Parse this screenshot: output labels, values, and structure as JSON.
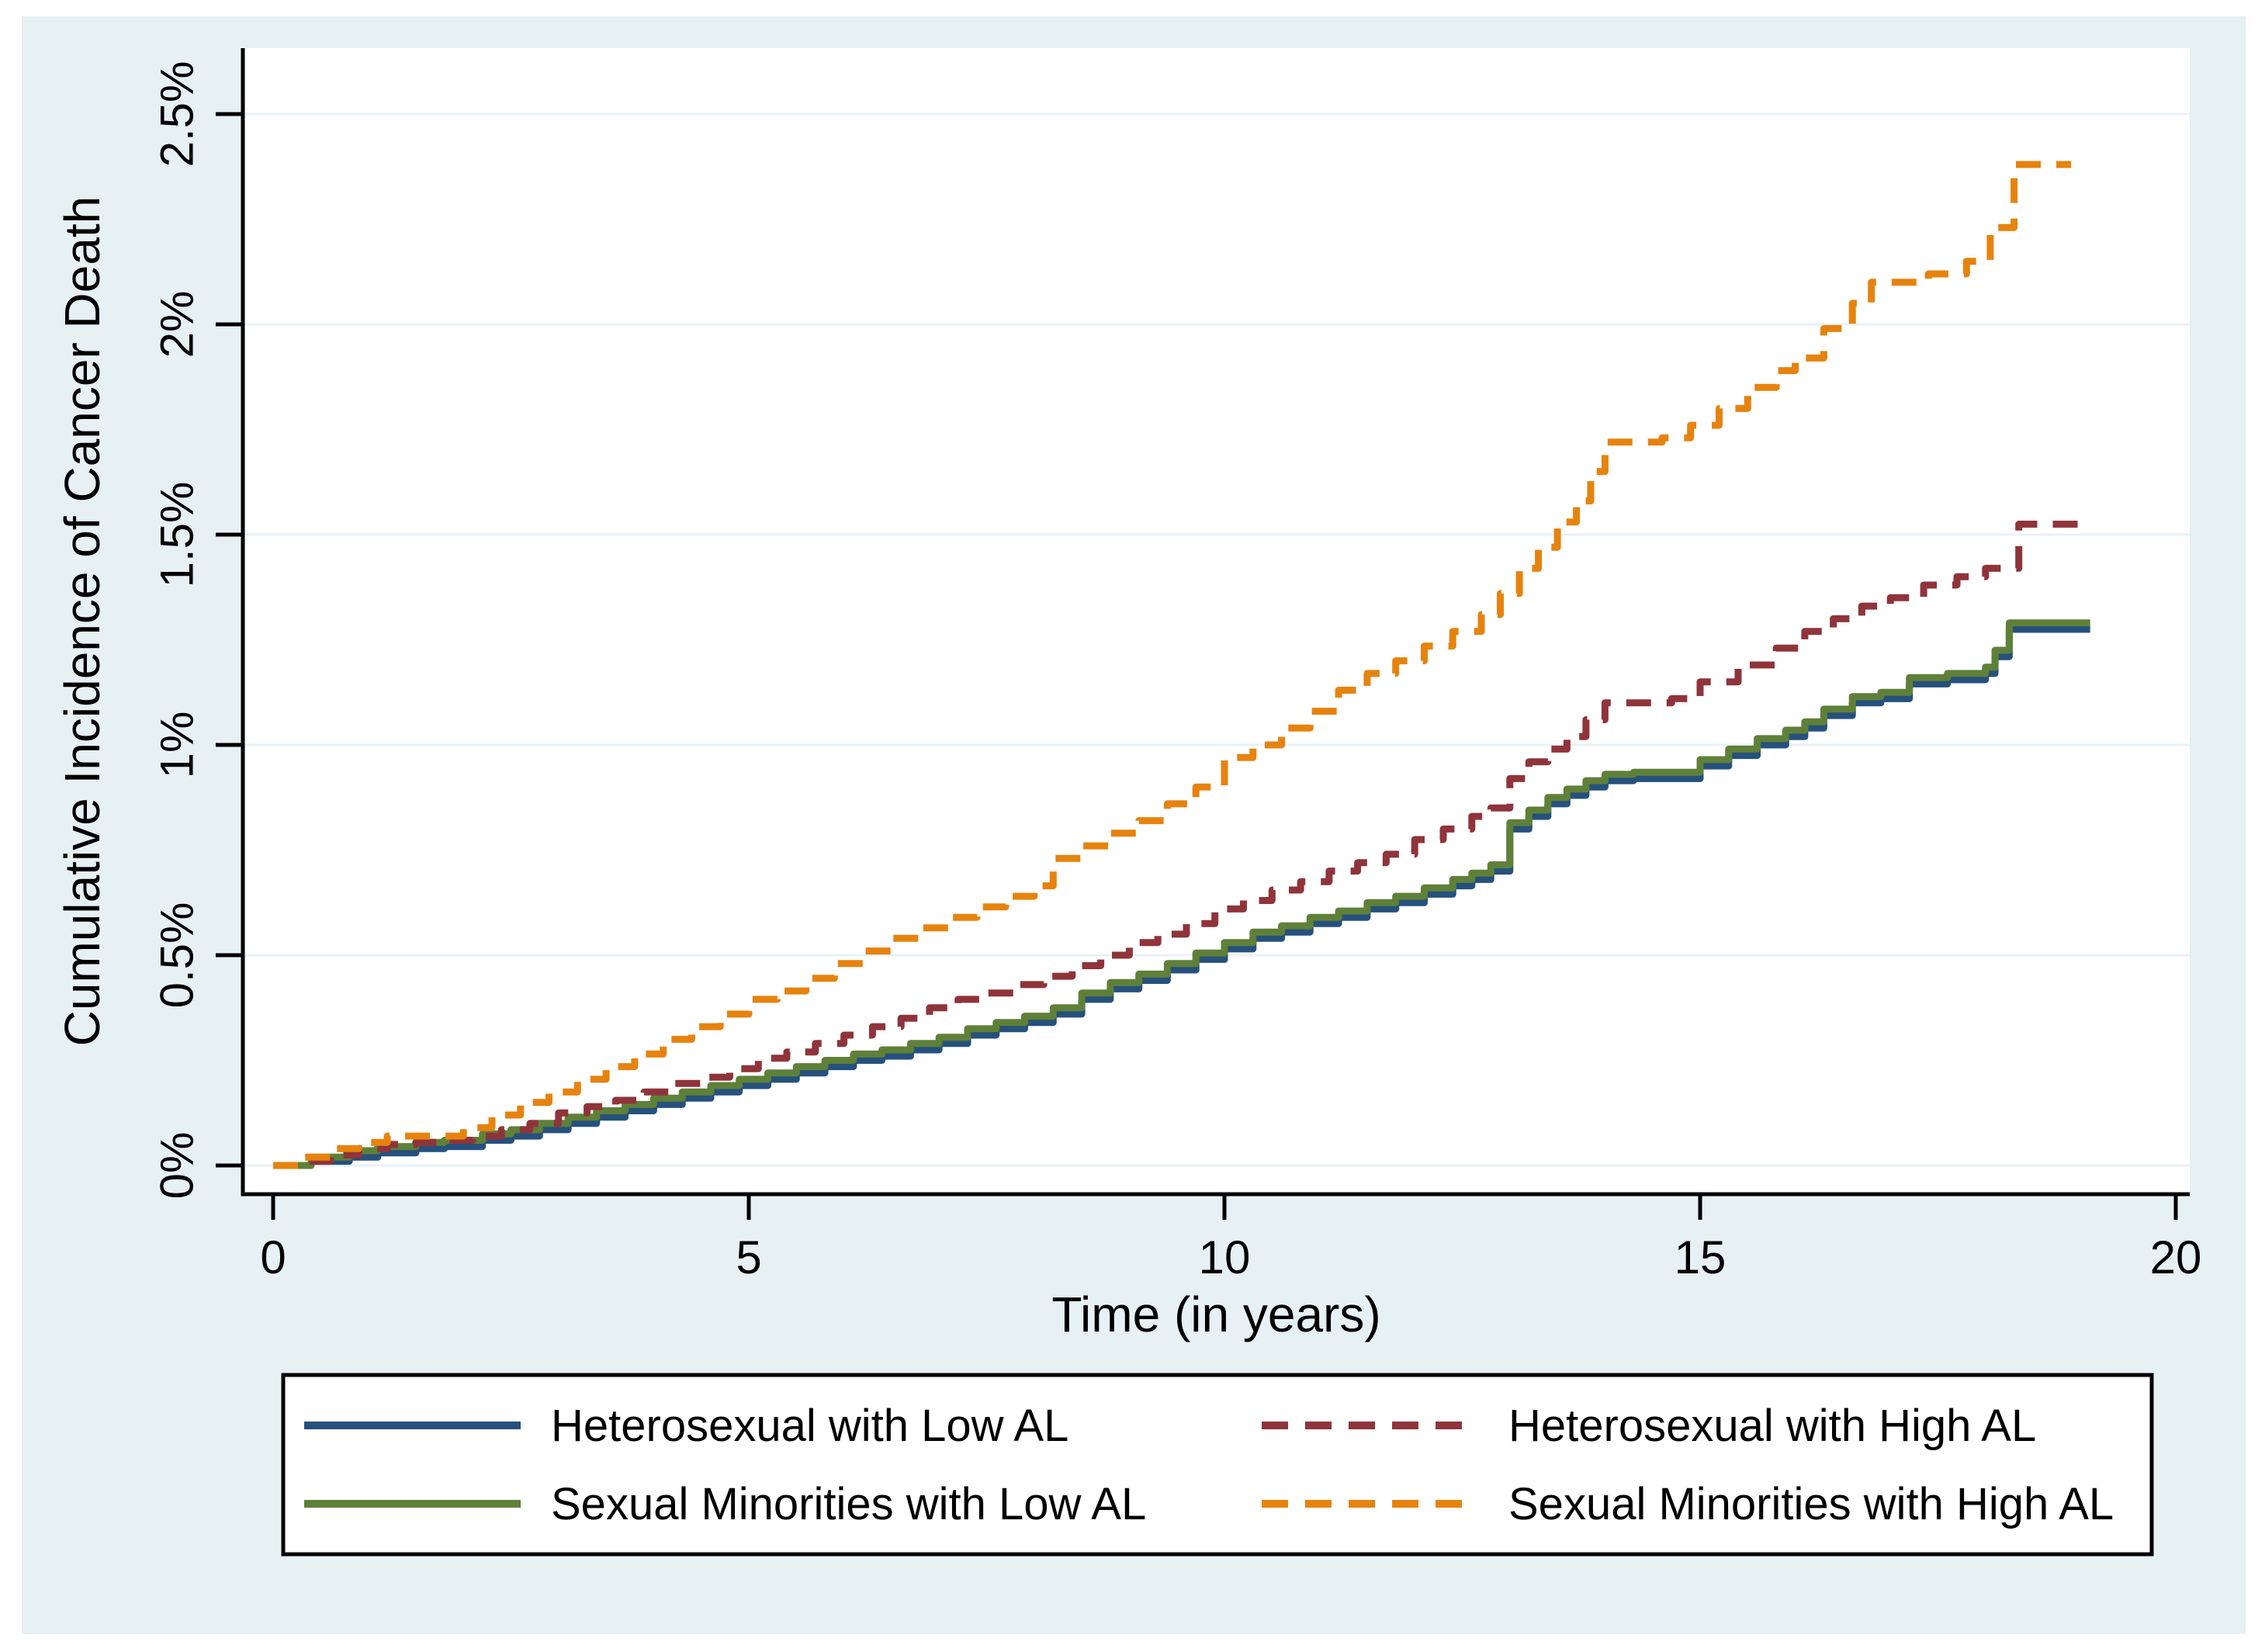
{
  "figure": {
    "background_color": "#ffffff",
    "canvas_color": "#e7f0f3",
    "plot_background": "#ffffff",
    "gridline_color": "#e9f2f5",
    "axis_color": "#000000"
  },
  "chart_data": {
    "type": "line",
    "subtype": "cumulative-incidence-step",
    "title": "",
    "xlabel": "Time (in years)",
    "ylabel": "Cumulative Incidence of Cancer Death",
    "xlim": [
      0,
      20
    ],
    "ylim": [
      0,
      2.5
    ],
    "grid": true,
    "legend_position": "bottom",
    "x_ticks": {
      "values": [
        0,
        5,
        10,
        15,
        20
      ],
      "labels": [
        "0",
        "5",
        "10",
        "15",
        "20"
      ]
    },
    "y_ticks": {
      "values": [
        0,
        0.5,
        1,
        1.5,
        2,
        2.5
      ],
      "labels": [
        "0%",
        "0.5%",
        "1%",
        "1.5%",
        "2%",
        "2.5%"
      ]
    },
    "series": [
      {
        "name": "Heterosexual with Low AL",
        "color": "#26517c",
        "style": "solid",
        "points": [
          [
            0,
            0
          ],
          [
            0.4,
            0.01
          ],
          [
            0.8,
            0.02
          ],
          [
            1.1,
            0.03
          ],
          [
            1.5,
            0.04
          ],
          [
            1.8,
            0.045
          ],
          [
            2.2,
            0.06
          ],
          [
            2.5,
            0.07
          ],
          [
            2.8,
            0.085
          ],
          [
            3.1,
            0.1
          ],
          [
            3.4,
            0.115
          ],
          [
            3.7,
            0.13
          ],
          [
            4.0,
            0.145
          ],
          [
            4.3,
            0.16
          ],
          [
            4.6,
            0.175
          ],
          [
            4.9,
            0.19
          ],
          [
            5.2,
            0.205
          ],
          [
            5.5,
            0.22
          ],
          [
            5.8,
            0.235
          ],
          [
            6.1,
            0.25
          ],
          [
            6.4,
            0.26
          ],
          [
            6.7,
            0.275
          ],
          [
            7.0,
            0.29
          ],
          [
            7.3,
            0.31
          ],
          [
            7.6,
            0.325
          ],
          [
            7.9,
            0.34
          ],
          [
            8.2,
            0.36
          ],
          [
            8.5,
            0.395
          ],
          [
            8.8,
            0.42
          ],
          [
            9.1,
            0.44
          ],
          [
            9.4,
            0.465
          ],
          [
            9.7,
            0.49
          ],
          [
            10.0,
            0.515
          ],
          [
            10.3,
            0.54
          ],
          [
            10.6,
            0.555
          ],
          [
            10.9,
            0.575
          ],
          [
            11.2,
            0.59
          ],
          [
            11.5,
            0.61
          ],
          [
            11.8,
            0.625
          ],
          [
            12.1,
            0.645
          ],
          [
            12.4,
            0.665
          ],
          [
            12.6,
            0.68
          ],
          [
            12.8,
            0.7
          ],
          [
            13.0,
            0.8
          ],
          [
            13.2,
            0.83
          ],
          [
            13.4,
            0.86
          ],
          [
            13.6,
            0.88
          ],
          [
            13.8,
            0.9
          ],
          [
            14.0,
            0.915
          ],
          [
            14.3,
            0.92
          ],
          [
            15.0,
            0.95
          ],
          [
            15.3,
            0.975
          ],
          [
            15.6,
            1.0
          ],
          [
            15.9,
            1.02
          ],
          [
            16.1,
            1.04
          ],
          [
            16.3,
            1.07
          ],
          [
            16.6,
            1.1
          ],
          [
            16.9,
            1.11
          ],
          [
            17.2,
            1.145
          ],
          [
            17.6,
            1.155
          ],
          [
            18.0,
            1.17
          ],
          [
            18.1,
            1.21
          ],
          [
            18.25,
            1.275
          ],
          [
            19.1,
            1.275
          ]
        ]
      },
      {
        "name": "Sexual Minorities with Low AL",
        "color": "#5f8038",
        "style": "solid",
        "points": [
          [
            0,
            0
          ],
          [
            0.4,
            0.02
          ],
          [
            0.8,
            0.035
          ],
          [
            1.1,
            0.045
          ],
          [
            1.5,
            0.055
          ],
          [
            1.8,
            0.06
          ],
          [
            2.2,
            0.075
          ],
          [
            2.5,
            0.085
          ],
          [
            2.8,
            0.1
          ],
          [
            3.1,
            0.115
          ],
          [
            3.4,
            0.13
          ],
          [
            3.7,
            0.145
          ],
          [
            4.0,
            0.16
          ],
          [
            4.3,
            0.175
          ],
          [
            4.6,
            0.19
          ],
          [
            4.9,
            0.205
          ],
          [
            5.2,
            0.22
          ],
          [
            5.5,
            0.235
          ],
          [
            5.8,
            0.25
          ],
          [
            6.1,
            0.265
          ],
          [
            6.4,
            0.275
          ],
          [
            6.7,
            0.29
          ],
          [
            7.0,
            0.305
          ],
          [
            7.3,
            0.325
          ],
          [
            7.6,
            0.34
          ],
          [
            7.9,
            0.355
          ],
          [
            8.2,
            0.375
          ],
          [
            8.5,
            0.41
          ],
          [
            8.8,
            0.435
          ],
          [
            9.1,
            0.455
          ],
          [
            9.4,
            0.48
          ],
          [
            9.7,
            0.505
          ],
          [
            10.0,
            0.53
          ],
          [
            10.3,
            0.555
          ],
          [
            10.6,
            0.57
          ],
          [
            10.9,
            0.59
          ],
          [
            11.2,
            0.605
          ],
          [
            11.5,
            0.625
          ],
          [
            11.8,
            0.64
          ],
          [
            12.1,
            0.66
          ],
          [
            12.4,
            0.68
          ],
          [
            12.6,
            0.695
          ],
          [
            12.8,
            0.715
          ],
          [
            13.0,
            0.815
          ],
          [
            13.2,
            0.845
          ],
          [
            13.4,
            0.875
          ],
          [
            13.6,
            0.895
          ],
          [
            13.8,
            0.915
          ],
          [
            14.0,
            0.93
          ],
          [
            14.3,
            0.935
          ],
          [
            15.0,
            0.965
          ],
          [
            15.3,
            0.99
          ],
          [
            15.6,
            1.015
          ],
          [
            15.9,
            1.035
          ],
          [
            16.1,
            1.055
          ],
          [
            16.3,
            1.085
          ],
          [
            16.6,
            1.115
          ],
          [
            16.9,
            1.125
          ],
          [
            17.2,
            1.16
          ],
          [
            17.6,
            1.17
          ],
          [
            18.0,
            1.185
          ],
          [
            18.1,
            1.225
          ],
          [
            18.25,
            1.29
          ],
          [
            19.1,
            1.29
          ]
        ]
      },
      {
        "name": "Heterosexual with High AL",
        "color": "#8f343a",
        "style": "dashed",
        "points": [
          [
            0,
            0
          ],
          [
            0.3,
            0.01
          ],
          [
            0.6,
            0.025
          ],
          [
            0.9,
            0.04
          ],
          [
            1.2,
            0.05
          ],
          [
            1.5,
            0.055
          ],
          [
            1.8,
            0.06
          ],
          [
            2.1,
            0.07
          ],
          [
            2.4,
            0.085
          ],
          [
            2.7,
            0.1
          ],
          [
            3.0,
            0.125
          ],
          [
            3.3,
            0.14
          ],
          [
            3.6,
            0.155
          ],
          [
            3.9,
            0.175
          ],
          [
            4.2,
            0.195
          ],
          [
            4.5,
            0.21
          ],
          [
            4.8,
            0.23
          ],
          [
            5.1,
            0.255
          ],
          [
            5.4,
            0.27
          ],
          [
            5.7,
            0.29
          ],
          [
            6.0,
            0.31
          ],
          [
            6.3,
            0.33
          ],
          [
            6.6,
            0.35
          ],
          [
            6.9,
            0.375
          ],
          [
            7.2,
            0.395
          ],
          [
            7.5,
            0.41
          ],
          [
            7.8,
            0.43
          ],
          [
            8.1,
            0.45
          ],
          [
            8.4,
            0.475
          ],
          [
            8.7,
            0.5
          ],
          [
            9.0,
            0.53
          ],
          [
            9.3,
            0.55
          ],
          [
            9.6,
            0.575
          ],
          [
            9.9,
            0.61
          ],
          [
            10.2,
            0.63
          ],
          [
            10.5,
            0.655
          ],
          [
            10.8,
            0.675
          ],
          [
            11.1,
            0.7
          ],
          [
            11.4,
            0.72
          ],
          [
            11.7,
            0.74
          ],
          [
            12.0,
            0.775
          ],
          [
            12.3,
            0.8
          ],
          [
            12.6,
            0.83
          ],
          [
            12.8,
            0.85
          ],
          [
            13.0,
            0.92
          ],
          [
            13.2,
            0.96
          ],
          [
            13.4,
            0.99
          ],
          [
            13.6,
            1.02
          ],
          [
            13.8,
            1.06
          ],
          [
            14.0,
            1.1
          ],
          [
            14.7,
            1.11
          ],
          [
            15.0,
            1.15
          ],
          [
            15.4,
            1.19
          ],
          [
            15.8,
            1.23
          ],
          [
            16.1,
            1.27
          ],
          [
            16.4,
            1.3
          ],
          [
            16.7,
            1.33
          ],
          [
            17.0,
            1.35
          ],
          [
            17.35,
            1.38
          ],
          [
            17.7,
            1.4
          ],
          [
            18.0,
            1.42
          ],
          [
            18.35,
            1.525
          ],
          [
            19.05,
            1.525
          ]
        ]
      },
      {
        "name": "Sexual Minorities with High AL",
        "color": "#e6830f",
        "style": "dashed",
        "points": [
          [
            0,
            0
          ],
          [
            0.3,
            0.02
          ],
          [
            0.6,
            0.04
          ],
          [
            0.9,
            0.055
          ],
          [
            1.2,
            0.07
          ],
          [
            2.0,
            0.09
          ],
          [
            2.3,
            0.12
          ],
          [
            2.6,
            0.15
          ],
          [
            2.9,
            0.175
          ],
          [
            3.2,
            0.205
          ],
          [
            3.5,
            0.235
          ],
          [
            3.8,
            0.265
          ],
          [
            4.1,
            0.3
          ],
          [
            4.4,
            0.33
          ],
          [
            4.7,
            0.36
          ],
          [
            5.0,
            0.395
          ],
          [
            5.3,
            0.415
          ],
          [
            5.6,
            0.445
          ],
          [
            5.9,
            0.48
          ],
          [
            6.2,
            0.51
          ],
          [
            6.5,
            0.54
          ],
          [
            6.8,
            0.565
          ],
          [
            7.1,
            0.59
          ],
          [
            7.4,
            0.615
          ],
          [
            7.7,
            0.64
          ],
          [
            8.0,
            0.665
          ],
          [
            8.2,
            0.73
          ],
          [
            8.5,
            0.76
          ],
          [
            8.8,
            0.79
          ],
          [
            9.1,
            0.82
          ],
          [
            9.4,
            0.86
          ],
          [
            9.7,
            0.9
          ],
          [
            10.0,
            0.97
          ],
          [
            10.3,
            1.0
          ],
          [
            10.6,
            1.04
          ],
          [
            10.9,
            1.08
          ],
          [
            11.2,
            1.13
          ],
          [
            11.5,
            1.17
          ],
          [
            11.8,
            1.2
          ],
          [
            12.1,
            1.235
          ],
          [
            12.4,
            1.27
          ],
          [
            12.7,
            1.31
          ],
          [
            12.9,
            1.36
          ],
          [
            13.1,
            1.42
          ],
          [
            13.3,
            1.47
          ],
          [
            13.5,
            1.53
          ],
          [
            13.7,
            1.58
          ],
          [
            13.85,
            1.65
          ],
          [
            14.0,
            1.72
          ],
          [
            14.6,
            1.73
          ],
          [
            14.9,
            1.76
          ],
          [
            15.2,
            1.8
          ],
          [
            15.5,
            1.85
          ],
          [
            15.8,
            1.89
          ],
          [
            16.0,
            1.92
          ],
          [
            16.3,
            1.99
          ],
          [
            16.6,
            2.05
          ],
          [
            16.8,
            2.1
          ],
          [
            17.4,
            2.12
          ],
          [
            17.8,
            2.15
          ],
          [
            18.05,
            2.23
          ],
          [
            18.3,
            2.38
          ],
          [
            18.9,
            2.38
          ]
        ]
      }
    ]
  },
  "legend": {
    "entries": [
      {
        "label": "Heterosexual with Low AL",
        "color": "#26517c",
        "style": "solid",
        "row": 0,
        "col": 0
      },
      {
        "label": "Heterosexual with High AL",
        "color": "#8f343a",
        "style": "dashed",
        "row": 0,
        "col": 1
      },
      {
        "label": "Sexual Minorities with Low AL",
        "color": "#5f8038",
        "style": "solid",
        "row": 1,
        "col": 0
      },
      {
        "label": "Sexual Minorities with High AL",
        "color": "#e6830f",
        "style": "dashed",
        "row": 1,
        "col": 1
      }
    ]
  }
}
